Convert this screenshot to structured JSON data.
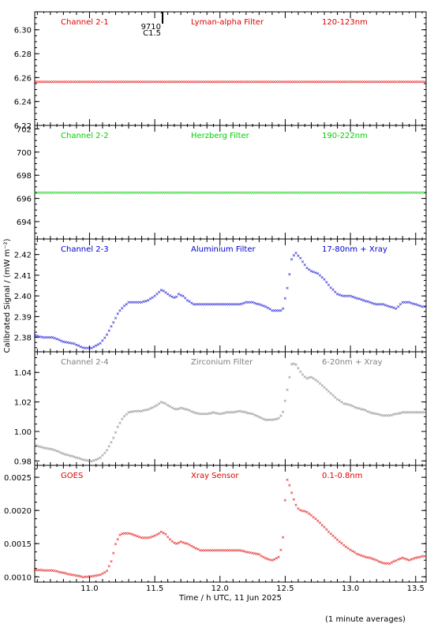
{
  "x_axis": {
    "label": "Time / h UTC, 11 Jun 2025",
    "range": [
      10.58,
      13.58
    ],
    "ticks": [
      "11.0",
      "11.5",
      "12.0",
      "12.5",
      "13.0",
      "13.5"
    ]
  },
  "y_axis_label": "Calibrated Signal / (mW m⁻²)",
  "footnote": "(1 minute averages)",
  "event_marker": {
    "time": 11.56,
    "labels": [
      "9710",
      "C1.5"
    ]
  },
  "chart_data": [
    {
      "type": "scatter",
      "channel": "Channel 2-1",
      "filter": "Lyman-alpha Filter",
      "band": "120-123nm",
      "color": "#e00000",
      "ylim": [
        6.22,
        6.315
      ],
      "yticks": [
        "6.22",
        "6.24",
        "6.26",
        "6.28",
        "6.30"
      ],
      "ytick_values": [
        6.22,
        6.24,
        6.26,
        6.28,
        6.3
      ],
      "series": {
        "x": [
          10.58,
          13.58
        ],
        "y": [
          6.2565,
          6.2565
        ],
        "profile": "flat"
      }
    },
    {
      "type": "scatter",
      "channel": "Channel 2-2",
      "filter": "Herzberg Filter",
      "band": "190-222nm",
      "color": "#00d000",
      "ylim": [
        692.5,
        702.3
      ],
      "yticks": [
        "694",
        "696",
        "698",
        "700",
        "702"
      ],
      "ytick_values": [
        694,
        696,
        698,
        700,
        702
      ],
      "series": {
        "x": [
          10.58,
          13.58
        ],
        "y": [
          696.5,
          696.5
        ],
        "profile": "flat"
      }
    },
    {
      "type": "scatter",
      "channel": "Channel 2-3",
      "filter": "Aluminium Filter",
      "band": "17-80nm + Xray",
      "color": "#0000d0",
      "ylim": [
        2.373,
        2.4275
      ],
      "yticks": [
        "2.38",
        "2.39",
        "2.40",
        "2.41",
        "2.42"
      ],
      "ytick_values": [
        2.38,
        2.39,
        2.4,
        2.41,
        2.42
      ],
      "series": {
        "x": [
          10.58,
          10.65,
          10.72,
          10.8,
          10.88,
          10.95,
          11.02,
          11.08,
          11.13,
          11.18,
          11.22,
          11.26,
          11.3,
          11.35,
          11.4,
          11.45,
          11.5,
          11.55,
          11.58,
          11.62,
          11.66,
          11.68,
          11.72,
          11.75,
          11.8,
          11.85,
          11.9,
          11.95,
          12.0,
          12.05,
          12.1,
          12.15,
          12.2,
          12.25,
          12.3,
          12.35,
          12.4,
          12.45,
          12.48,
          12.52,
          12.55,
          12.58,
          12.62,
          12.66,
          12.7,
          12.75,
          12.8,
          12.85,
          12.9,
          12.95,
          13.0,
          13.05,
          13.1,
          13.15,
          13.2,
          13.25,
          13.3,
          13.35,
          13.4,
          13.45,
          13.5,
          13.55
        ],
        "y": [
          2.381,
          2.38,
          2.38,
          2.378,
          2.377,
          2.375,
          2.375,
          2.377,
          2.381,
          2.387,
          2.392,
          2.395,
          2.397,
          2.397,
          2.397,
          2.398,
          2.4,
          2.403,
          2.402,
          2.4,
          2.399,
          2.401,
          2.4,
          2.398,
          2.396,
          2.396,
          2.396,
          2.396,
          2.396,
          2.396,
          2.396,
          2.396,
          2.397,
          2.397,
          2.396,
          2.395,
          2.393,
          2.393,
          2.393,
          2.405,
          2.418,
          2.421,
          2.418,
          2.414,
          2.412,
          2.411,
          2.408,
          2.404,
          2.401,
          2.4,
          2.4,
          2.399,
          2.398,
          2.397,
          2.396,
          2.396,
          2.395,
          2.394,
          2.397,
          2.397,
          2.396,
          2.395
        ]
      }
    },
    {
      "type": "scatter",
      "channel": "Channel 2-4",
      "filter": "Zirconium Filter",
      "band": "6-20nm + Xray",
      "color": "#808080",
      "ylim": [
        0.977,
        1.054
      ],
      "yticks": [
        "0.98",
        "1.00",
        "1.02",
        "1.04"
      ],
      "ytick_values": [
        0.98,
        1.0,
        1.02,
        1.04
      ],
      "series": {
        "x": [
          10.58,
          10.65,
          10.72,
          10.8,
          10.88,
          10.95,
          11.02,
          11.08,
          11.13,
          11.18,
          11.22,
          11.26,
          11.3,
          11.35,
          11.4,
          11.45,
          11.5,
          11.55,
          11.58,
          11.62,
          11.66,
          11.7,
          11.75,
          11.8,
          11.85,
          11.9,
          11.95,
          12.0,
          12.05,
          12.1,
          12.15,
          12.2,
          12.25,
          12.3,
          12.35,
          12.4,
          12.45,
          12.48,
          12.52,
          12.55,
          12.58,
          12.62,
          12.66,
          12.7,
          12.75,
          12.8,
          12.85,
          12.9,
          12.95,
          13.0,
          13.05,
          13.1,
          13.15,
          13.2,
          13.25,
          13.3,
          13.35,
          13.4,
          13.45,
          13.5,
          13.55
        ],
        "y": [
          0.991,
          0.989,
          0.988,
          0.985,
          0.983,
          0.981,
          0.98,
          0.982,
          0.987,
          0.995,
          1.004,
          1.01,
          1.013,
          1.014,
          1.014,
          1.015,
          1.017,
          1.02,
          1.019,
          1.017,
          1.015,
          1.016,
          1.015,
          1.013,
          1.012,
          1.012,
          1.013,
          1.012,
          1.013,
          1.013,
          1.014,
          1.013,
          1.012,
          1.01,
          1.008,
          1.008,
          1.009,
          1.012,
          1.03,
          1.046,
          1.046,
          1.04,
          1.036,
          1.037,
          1.034,
          1.03,
          1.026,
          1.022,
          1.019,
          1.018,
          1.016,
          1.015,
          1.013,
          1.012,
          1.011,
          1.011,
          1.012,
          1.013,
          1.013,
          1.013,
          1.013
        ]
      }
    },
    {
      "type": "scatter",
      "channel": "GOES",
      "filter": "Xray Sensor",
      "band": "0.1-0.8nm",
      "color": "#e00000",
      "ylim": [
        0.00092,
        0.00268
      ],
      "yticks": [
        "0.0010",
        "0.0015",
        "0.0020",
        "0.0025"
      ],
      "ytick_values": [
        0.001,
        0.0015,
        0.002,
        0.0025
      ],
      "series": {
        "x": [
          10.58,
          10.65,
          10.72,
          10.8,
          10.88,
          10.95,
          11.02,
          11.08,
          11.13,
          11.17,
          11.2,
          11.23,
          11.26,
          11.3,
          11.35,
          11.4,
          11.45,
          11.5,
          11.55,
          11.58,
          11.62,
          11.66,
          11.7,
          11.75,
          11.8,
          11.85,
          11.9,
          11.95,
          12.0,
          12.05,
          12.1,
          12.15,
          12.2,
          12.25,
          12.3,
          12.35,
          12.4,
          12.45,
          12.48,
          12.51,
          12.53,
          12.56,
          12.59,
          12.62,
          12.66,
          12.7,
          12.75,
          12.8,
          12.85,
          12.9,
          12.95,
          13.0,
          13.05,
          13.1,
          13.15,
          13.2,
          13.25,
          13.3,
          13.35,
          13.4,
          13.45,
          13.5,
          13.55
        ],
        "y": [
          0.00111,
          0.0011,
          0.0011,
          0.00106,
          0.00103,
          0.001,
          0.00101,
          0.00103,
          0.00108,
          0.00125,
          0.0015,
          0.00163,
          0.00166,
          0.00166,
          0.00163,
          0.00159,
          0.00159,
          0.00162,
          0.00168,
          0.00165,
          0.00156,
          0.0015,
          0.00153,
          0.0015,
          0.00145,
          0.0014,
          0.0014,
          0.0014,
          0.0014,
          0.0014,
          0.0014,
          0.0014,
          0.00138,
          0.00136,
          0.00134,
          0.00128,
          0.00125,
          0.0013,
          0.0015,
          0.0025,
          0.0024,
          0.0022,
          0.00205,
          0.002,
          0.00199,
          0.00193,
          0.00185,
          0.00175,
          0.00165,
          0.00156,
          0.00148,
          0.00141,
          0.00135,
          0.00131,
          0.00129,
          0.00125,
          0.00121,
          0.0012,
          0.00125,
          0.00129,
          0.00125,
          0.00129,
          0.00131
        ]
      }
    }
  ]
}
